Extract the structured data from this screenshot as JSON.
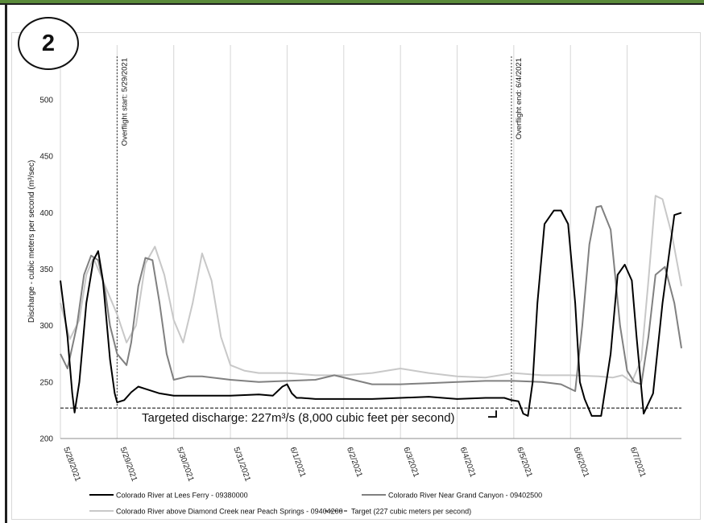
{
  "badge": {
    "label": "2"
  },
  "chart_data": {
    "type": "line",
    "title": "",
    "ylabel": "Discharge - cubic meters per second (m³/sec)",
    "xlabel": "",
    "ylim": [
      200,
      520
    ],
    "yticks": [
      200,
      250,
      300,
      350,
      400,
      450,
      500
    ],
    "xlim": [
      "2021-05-28T00:00",
      "2021-06-07T23:00"
    ],
    "x_tick_labels": [
      "5/28/2021",
      "5/29/2021",
      "5/30/2021",
      "5/31/2021",
      "6/1/2021",
      "6/2/2021",
      "6/3/2021",
      "6/4/2021",
      "6/5/2021",
      "6/6/2021",
      "6/7/2021"
    ],
    "grid": "vertical",
    "legend_position": "bottom",
    "series": [
      {
        "name": "Colorado River at Lees Ferry - 09380000",
        "color": "#000000",
        "x": [
          "2021-05-28T00:00",
          "2021-05-28T03:00",
          "2021-05-28T05:00",
          "2021-05-28T06:00",
          "2021-05-28T08:00",
          "2021-05-28T11:00",
          "2021-05-28T14:00",
          "2021-05-28T16:00",
          "2021-05-28T18:00",
          "2021-05-28T21:00",
          "2021-05-28T23:00",
          "2021-05-29T00:00",
          "2021-05-29T03:00",
          "2021-05-29T06:00",
          "2021-05-29T09:00",
          "2021-05-29T12:00",
          "2021-05-29T18:00",
          "2021-05-30T00:00",
          "2021-05-30T12:00",
          "2021-05-31T00:00",
          "2021-05-31T12:00",
          "2021-05-31T18:00",
          "2021-05-31T22:00",
          "2021-06-01T00:00",
          "2021-06-01T02:00",
          "2021-06-01T04:00",
          "2021-06-01T06:00",
          "2021-06-01T12:00",
          "2021-06-02T00:00",
          "2021-06-02T12:00",
          "2021-06-03T00:00",
          "2021-06-03T12:00",
          "2021-06-04T00:00",
          "2021-06-04T12:00",
          "2021-06-04T20:00",
          "2021-06-04T23:00",
          "2021-06-05T02:00",
          "2021-06-05T04:00",
          "2021-06-05T06:00",
          "2021-06-05T08:00",
          "2021-06-05T10:00",
          "2021-06-05T13:00",
          "2021-06-05T17:00",
          "2021-06-05T20:00",
          "2021-06-05T23:00",
          "2021-06-06T02:00",
          "2021-06-06T04:00",
          "2021-06-06T06:00",
          "2021-06-06T09:00",
          "2021-06-06T13:00",
          "2021-06-06T17:00",
          "2021-06-06T20:00",
          "2021-06-06T23:00",
          "2021-06-07T02:00",
          "2021-06-07T04:00",
          "2021-06-07T07:00",
          "2021-06-07T11:00",
          "2021-06-07T15:00",
          "2021-06-07T20:00",
          "2021-06-07T23:00"
        ],
        "y": [
          340,
          290,
          240,
          223,
          250,
          320,
          358,
          366,
          340,
          270,
          240,
          232,
          234,
          241,
          246,
          244,
          240,
          238,
          238,
          238,
          239,
          238,
          246,
          248,
          240,
          236,
          236,
          235,
          235,
          235,
          236,
          237,
          235,
          236,
          236,
          234,
          233,
          222,
          220,
          250,
          320,
          390,
          402,
          402,
          390,
          320,
          250,
          235,
          220,
          220,
          275,
          345,
          354,
          340,
          290,
          222,
          240,
          320,
          398,
          400
        ]
      },
      {
        "name": "Colorado River Near Grand Canyon - 09402500",
        "color": "#808080",
        "x": [
          "2021-05-28T00:00",
          "2021-05-28T03:00",
          "2021-05-28T07:00",
          "2021-05-28T10:00",
          "2021-05-28T13:00",
          "2021-05-28T16:00",
          "2021-05-28T19:00",
          "2021-05-28T21:00",
          "2021-05-29T00:00",
          "2021-05-29T04:00",
          "2021-05-29T06:00",
          "2021-05-29T09:00",
          "2021-05-29T12:00",
          "2021-05-29T15:00",
          "2021-05-29T18:00",
          "2021-05-29T21:00",
          "2021-05-30T00:00",
          "2021-05-30T06:00",
          "2021-05-30T12:00",
          "2021-05-31T00:00",
          "2021-05-31T12:00",
          "2021-06-01T00:00",
          "2021-06-01T12:00",
          "2021-06-01T20:00",
          "2021-06-02T04:00",
          "2021-06-02T12:00",
          "2021-06-03T00:00",
          "2021-06-03T12:00",
          "2021-06-04T00:00",
          "2021-06-04T12:00",
          "2021-06-05T00:00",
          "2021-06-05T12:00",
          "2021-06-05T20:00",
          "2021-06-05T23:00",
          "2021-06-06T02:00",
          "2021-06-06T05:00",
          "2021-06-06T08:00",
          "2021-06-06T11:00",
          "2021-06-06T13:00",
          "2021-06-06T17:00",
          "2021-06-06T21:00",
          "2021-06-07T00:00",
          "2021-06-07T03:00",
          "2021-06-07T06:00",
          "2021-06-07T09:00",
          "2021-06-07T12:00",
          "2021-06-07T16:00",
          "2021-06-07T20:00",
          "2021-06-07T23:00"
        ],
        "y": [
          275,
          262,
          300,
          345,
          362,
          358,
          330,
          300,
          275,
          265,
          285,
          335,
          360,
          358,
          320,
          275,
          252,
          255,
          255,
          252,
          250,
          251,
          252,
          256,
          252,
          248,
          248,
          249,
          250,
          251,
          251,
          250,
          248,
          245,
          242,
          300,
          372,
          405,
          406,
          385,
          300,
          260,
          250,
          248,
          290,
          345,
          352,
          320,
          280
        ]
      },
      {
        "name": "Colorado River above Diamond Creek near Peach Springs - 09404200",
        "color": "#c8c8c8",
        "x": [
          "2021-05-28T00:00",
          "2021-05-28T04:00",
          "2021-05-28T08:00",
          "2021-05-28T11:00",
          "2021-05-28T14:00",
          "2021-05-28T17:00",
          "2021-05-28T20:00",
          "2021-05-29T00:00",
          "2021-05-29T04:00",
          "2021-05-29T08:00",
          "2021-05-29T12:00",
          "2021-05-29T16:00",
          "2021-05-29T20:00",
          "2021-05-30T00:00",
          "2021-05-30T04:00",
          "2021-05-30T08:00",
          "2021-05-30T12:00",
          "2021-05-30T16:00",
          "2021-05-30T20:00",
          "2021-05-31T00:00",
          "2021-05-31T06:00",
          "2021-05-31T12:00",
          "2021-06-01T00:00",
          "2021-06-01T12:00",
          "2021-06-02T00:00",
          "2021-06-02T12:00",
          "2021-06-03T00:00",
          "2021-06-03T12:00",
          "2021-06-04T00:00",
          "2021-06-04T12:00",
          "2021-06-05T00:00",
          "2021-06-05T12:00",
          "2021-06-06T00:00",
          "2021-06-06T12:00",
          "2021-06-06T18:00",
          "2021-06-06T22:00",
          "2021-06-07T02:00",
          "2021-06-07T06:00",
          "2021-06-07T09:00",
          "2021-06-07T12:00",
          "2021-06-07T15:00",
          "2021-06-07T19:00",
          "2021-06-07T23:00"
        ],
        "y": [
          320,
          288,
          305,
          345,
          360,
          345,
          330,
          310,
          285,
          300,
          355,
          370,
          345,
          305,
          285,
          320,
          364,
          340,
          290,
          265,
          260,
          258,
          258,
          256,
          256,
          258,
          262,
          258,
          255,
          254,
          258,
          256,
          256,
          255,
          254,
          256,
          250,
          270,
          340,
          415,
          412,
          380,
          335
        ]
      },
      {
        "name": "Target (227 cubic meters per second)",
        "color": "#000000",
        "dashed": true,
        "x": [
          "2021-05-28T00:00",
          "2021-06-07T23:00"
        ],
        "y": [
          227,
          227
        ]
      }
    ],
    "annotations": [
      {
        "text": "Overflight start: 5/29/2021",
        "x": "2021-05-29T00:00"
      },
      {
        "text": "Overflight end: 6/4/2021",
        "x": "2021-06-04T23:00"
      },
      {
        "text": "Targeted discharge: 227m³/s (8,000 cubic feet per second)",
        "y": 227
      }
    ]
  }
}
